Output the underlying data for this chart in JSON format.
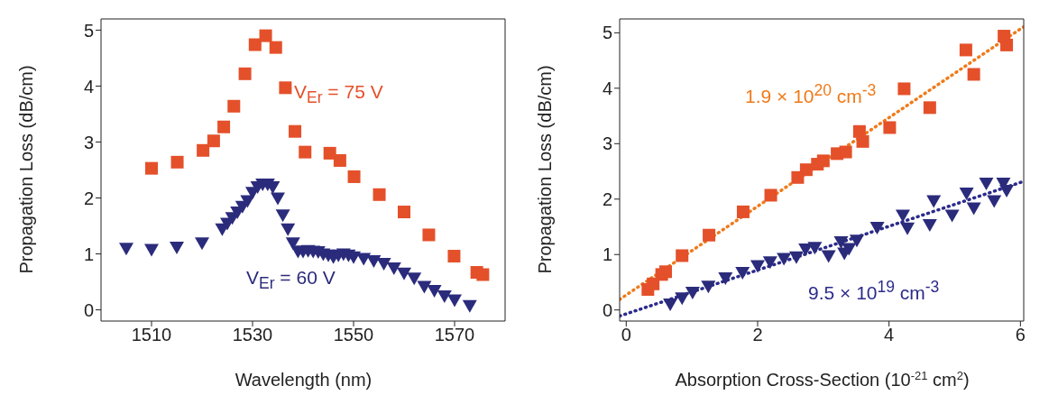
{
  "chart_data": [
    {
      "type": "scatter",
      "xlabel": "Wavelength (nm)",
      "ylabel": "Propagation Loss (dB/cm)",
      "xlim": [
        1500,
        1580
      ],
      "xticks": [
        1510,
        1530,
        1550,
        1570
      ],
      "ylim": [
        -0.2,
        5.2
      ],
      "yticks": [
        0,
        1,
        2,
        3,
        4,
        5
      ],
      "series": [
        {
          "name": "V$_{Er}$ = 75 V",
          "color": "#e4502a",
          "marker": "square",
          "x": [
            1510,
            1515.1,
            1520.2,
            1522.3,
            1524.3,
            1526.3,
            1528.5,
            1530.5,
            1532.6,
            1534.6,
            1536.5,
            1538.4,
            1540.4,
            1545.3,
            1547.3,
            1550.1,
            1555.1,
            1560,
            1564.9,
            1569.9,
            1574.4,
            1575.6
          ],
          "values": [
            2.53,
            2.64,
            2.85,
            3.02,
            3.27,
            3.64,
            4.22,
            4.74,
            4.9,
            4.69,
            3.97,
            3.19,
            2.82,
            2.8,
            2.67,
            2.38,
            2.06,
            1.75,
            1.34,
            0.96,
            0.67,
            0.63
          ]
        },
        {
          "name": "V$_{Er}$ = 60 V",
          "color": "#2b2b7c",
          "marker": "triangle",
          "x": [
            1505,
            1510,
            1515,
            1520,
            1524,
            1525,
            1526,
            1527,
            1528,
            1529,
            1530,
            1531,
            1532,
            1533,
            1534,
            1535,
            1536,
            1537,
            1538,
            1539,
            1540,
            1541,
            1542,
            1543,
            1544,
            1545,
            1546,
            1547,
            1548,
            1549,
            1550,
            1552,
            1554,
            1556,
            1558,
            1560,
            1562,
            1564,
            1566,
            1568,
            1570,
            1573
          ],
          "values": [
            1.1,
            1.08,
            1.12,
            1.2,
            1.45,
            1.55,
            1.65,
            1.75,
            1.85,
            1.95,
            2.1,
            2.2,
            2.25,
            2.25,
            2.2,
            2.0,
            1.7,
            1.45,
            1.2,
            1.05,
            1.05,
            1.06,
            1.05,
            1.04,
            1.0,
            0.98,
            0.95,
            0.98,
            1.0,
            0.98,
            0.95,
            0.92,
            0.88,
            0.83,
            0.75,
            0.66,
            0.57,
            0.42,
            0.35,
            0.25,
            0.18,
            0.08
          ]
        }
      ]
    },
    {
      "type": "scatter",
      "xlabel": "Absorption Cross-Section (10$^{-21}$ cm$^{2}$)",
      "ylabel": "Propagation Loss (dB/cm)",
      "xlim": [
        -0.1,
        6.05
      ],
      "xticks": [
        0,
        2,
        4,
        6
      ],
      "ylim": [
        -0.2,
        5.25
      ],
      "yticks": [
        0,
        1,
        2,
        3,
        4,
        5
      ],
      "series": [
        {
          "color": "#e4502a",
          "marker": "square",
          "x": [
            0.33,
            0.41,
            0.54,
            0.6,
            0.85,
            1.26,
            1.78,
            2.2,
            2.61,
            2.74,
            2.91,
            3.0,
            3.21,
            3.34,
            3.55,
            3.6,
            4.01,
            4.23,
            4.62,
            5.17,
            5.29,
            5.75,
            5.79
          ],
          "values": [
            0.37,
            0.47,
            0.64,
            0.69,
            0.98,
            1.35,
            1.77,
            2.07,
            2.39,
            2.53,
            2.63,
            2.69,
            2.82,
            2.85,
            3.22,
            3.04,
            3.29,
            3.99,
            3.65,
            4.69,
            4.25,
            4.94,
            4.78
          ]
        },
        {
          "color": "#2b2b7c",
          "marker": "triangle",
          "x": [
            0.67,
            0.85,
            1.01,
            1.25,
            1.51,
            1.77,
            2.0,
            2.19,
            2.4,
            2.59,
            2.73,
            2.87,
            3.08,
            3.27,
            3.32,
            3.39,
            3.51,
            3.82,
            4.21,
            4.28,
            4.62,
            4.68,
            4.96,
            5.18,
            5.29,
            5.48,
            5.6,
            5.74,
            5.79
          ],
          "values": [
            0.11,
            0.22,
            0.32,
            0.43,
            0.58,
            0.68,
            0.8,
            0.87,
            0.93,
            0.96,
            1.1,
            1.13,
            0.98,
            1.23,
            1.03,
            1.11,
            1.26,
            1.49,
            1.71,
            1.48,
            1.54,
            1.97,
            1.71,
            2.11,
            1.84,
            2.29,
            1.97,
            2.29,
            2.16
          ]
        },
        {
          "type": "line",
          "name": "1.9 × 10$^{20}$ cm$^{-3}$",
          "color": "#f07a1a",
          "marker": "none",
          "line_style": "dotted",
          "x": [
            -0.1,
            6.05
          ],
          "values": [
            0.19,
            5.11
          ]
        },
        {
          "type": "line",
          "name": "9.5 × 10$^{19}$ cm$^{-3}$",
          "color": "#2b2b8c",
          "marker": "none",
          "line_style": "dotted",
          "x": [
            -0.1,
            6.05
          ],
          "values": [
            -0.11,
            2.32
          ]
        }
      ]
    }
  ]
}
